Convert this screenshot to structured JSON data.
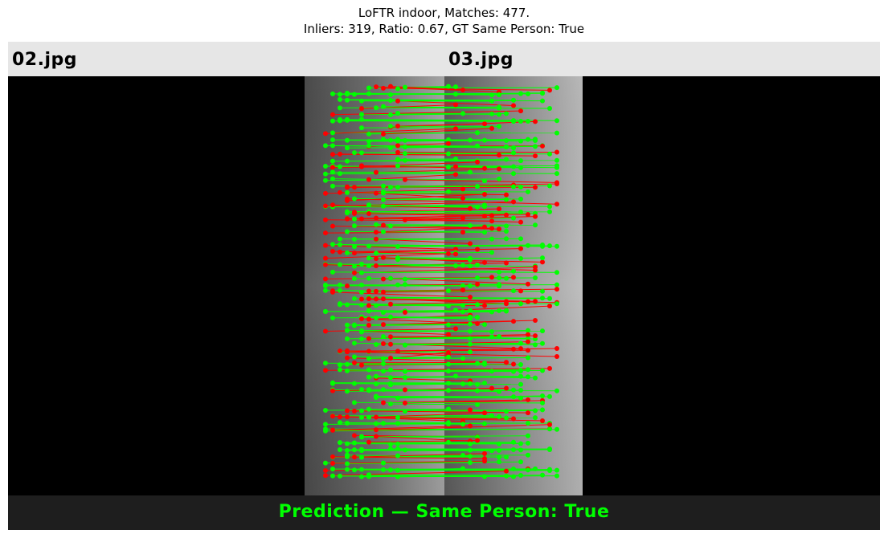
{
  "title": {
    "line1": "LoFTR indoor, Matches: 477.",
    "line2": "Inliers: 319, Ratio: 0.67, GT Same Person: True"
  },
  "images": {
    "left_label": "02.jpg",
    "right_label": "03.jpg"
  },
  "prediction": {
    "text": "Prediction — Same Person: True",
    "color": "#00ff00"
  },
  "colors": {
    "inlier": "#00ff00",
    "outlier": "#ff0000",
    "label_bar": "#e6e6e6",
    "background": "#000000",
    "prediction_bar": "#1e1e1e"
  }
}
